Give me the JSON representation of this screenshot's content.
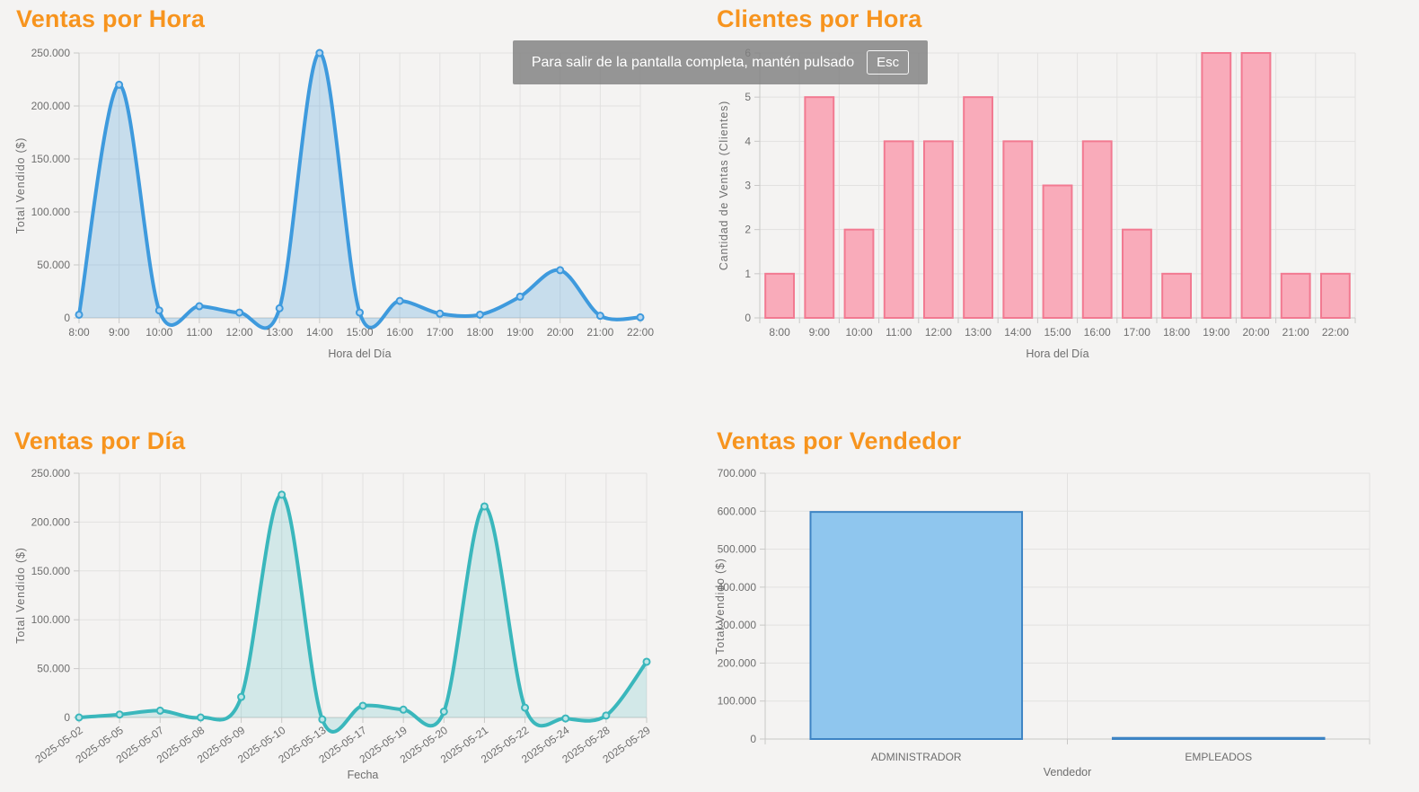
{
  "banner": {
    "message": "Para salir de la pantalla completa, mantén pulsado",
    "key": "Esc"
  },
  "colors": {
    "background": "#f4f3f2",
    "title": "#f7941e",
    "grid": "#e2e1e0",
    "axis": "#c9c8c7",
    "tick_text": "#6e6e6e",
    "banner_bg": "rgba(128,128,128,0.82)",
    "banner_text": "#ffffff"
  },
  "chart_data": [
    {
      "type": "area",
      "title": "Ventas por Hora",
      "xlabel": "Hora del Día",
      "ylabel": "Total Vendido ($)",
      "categories": [
        "8:00",
        "9:00",
        "10:00",
        "11:00",
        "12:00",
        "13:00",
        "14:00",
        "15:00",
        "16:00",
        "17:00",
        "18:00",
        "19:00",
        "20:00",
        "21:00",
        "22:00"
      ],
      "values": [
        3000,
        220000,
        7000,
        11000,
        5000,
        9000,
        250000,
        5000,
        16000,
        4000,
        3000,
        20000,
        45000,
        2000,
        500
      ],
      "ylim": [
        0,
        250000
      ],
      "ytick_step": 50000,
      "grid": true,
      "legend": "none",
      "style": {
        "line": "#3e9add",
        "fill": "rgba(62,154,221,0.25)",
        "point": "#b5d5ef"
      }
    },
    {
      "type": "bar",
      "title": "Clientes por Hora",
      "xlabel": "Hora del Día",
      "ylabel": "Cantidad de Ventas (Clientes)",
      "categories": [
        "8:00",
        "9:00",
        "10:00",
        "11:00",
        "12:00",
        "13:00",
        "14:00",
        "15:00",
        "16:00",
        "17:00",
        "18:00",
        "19:00",
        "20:00",
        "21:00",
        "22:00"
      ],
      "values": [
        1,
        5,
        2,
        4,
        4,
        5,
        4,
        3,
        4,
        2,
        1,
        6,
        6,
        1,
        1
      ],
      "ylim": [
        0,
        6
      ],
      "ytick_step": 1,
      "grid": true,
      "legend": "none",
      "style": {
        "fill": "#f9abba",
        "border": "#f27a91"
      }
    },
    {
      "type": "area",
      "title": "Ventas por Día",
      "xlabel": "Fecha",
      "ylabel": "Total Vendido ($)",
      "categories": [
        "2025-05-02",
        "2025-05-05",
        "2025-05-07",
        "2025-05-08",
        "2025-05-09",
        "2025-05-10",
        "2025-05-13",
        "2025-05-17",
        "2025-05-19",
        "2025-05-20",
        "2025-05-21",
        "2025-05-22",
        "2025-05-24",
        "2025-05-28",
        "2025-05-29"
      ],
      "values": [
        0,
        3000,
        7000,
        0,
        21000,
        228000,
        -2000,
        12000,
        8000,
        6000,
        216000,
        10000,
        -1000,
        2000,
        57000
      ],
      "ylim": [
        0,
        250000
      ],
      "ytick_step": 50000,
      "grid": true,
      "legend": "none",
      "style": {
        "line": "#3ab7bc",
        "fill": "rgba(58,183,188,0.18)",
        "point": "#bfe5e6"
      }
    },
    {
      "type": "bar",
      "title": "Ventas por Vendedor",
      "xlabel": "Vendedor",
      "ylabel": "Total Vendido ($)",
      "categories": [
        "ADMINISTRADOR",
        "EMPLEADOS"
      ],
      "values": [
        598000,
        3000
      ],
      "ylim": [
        0,
        700000
      ],
      "ytick_step": 100000,
      "grid": true,
      "legend": "none",
      "style": {
        "fill": "#8fc6ee",
        "border": "#3d84c4"
      }
    }
  ]
}
